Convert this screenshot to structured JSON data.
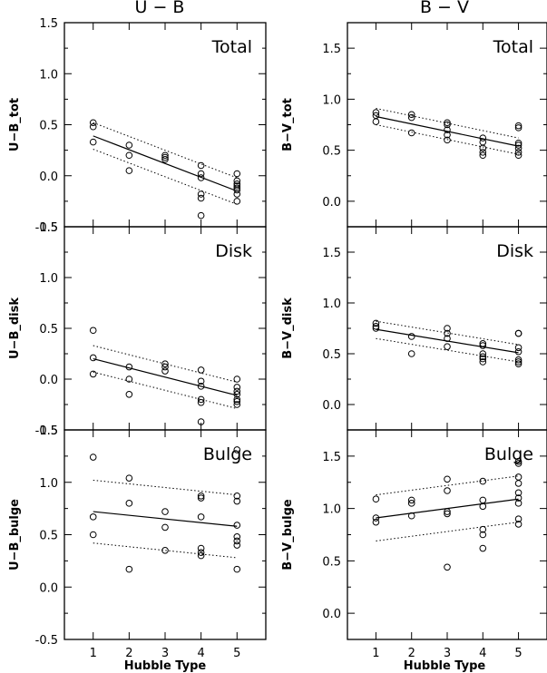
{
  "column_titles": [
    "U − B",
    "B − V"
  ],
  "xlabel": "Hubble Type",
  "chart_data": [
    {
      "type": "scatter",
      "panel": "Total",
      "ylabel": "U−B_tot",
      "xlim": [
        0.2,
        5.8
      ],
      "ylim": [
        -0.5,
        1.5
      ],
      "yticks": [
        "-0.5",
        "0.0",
        "0.5",
        "1.0",
        "1.5"
      ],
      "xticks": [
        "1",
        "2",
        "3",
        "4",
        "5"
      ],
      "points": [
        [
          1,
          0.52
        ],
        [
          1,
          0.48
        ],
        [
          1,
          0.33
        ],
        [
          2,
          0.3
        ],
        [
          2,
          0.2
        ],
        [
          2,
          0.05
        ],
        [
          3,
          0.2
        ],
        [
          3,
          0.18
        ],
        [
          3,
          0.16
        ],
        [
          4,
          0.1
        ],
        [
          4,
          0.02
        ],
        [
          4,
          -0.02
        ],
        [
          4,
          -0.18
        ],
        [
          4,
          -0.22
        ],
        [
          4,
          -0.39
        ],
        [
          5,
          0.02
        ],
        [
          5,
          -0.05
        ],
        [
          5,
          -0.08
        ],
        [
          5,
          -0.1
        ],
        [
          5,
          -0.12
        ],
        [
          5,
          -0.14
        ],
        [
          5,
          -0.18
        ],
        [
          5,
          -0.25
        ]
      ],
      "fit": [
        [
          1,
          0.39
        ],
        [
          5,
          -0.15
        ]
      ],
      "bounds": [
        [
          [
            1,
            0.52
          ],
          [
            5,
            -0.02
          ]
        ],
        [
          [
            1,
            0.26
          ],
          [
            5,
            -0.28
          ]
        ]
      ]
    },
    {
      "type": "scatter",
      "panel": "Total",
      "ylabel": "B−V_tot",
      "xlim": [
        0.2,
        5.8
      ],
      "ylim": [
        -0.25,
        1.75
      ],
      "yticks": [
        "0.0",
        "0.5",
        "1.0",
        "1.5"
      ],
      "xticks": [
        "1",
        "2",
        "3",
        "4",
        "5"
      ],
      "points": [
        [
          1,
          0.87
        ],
        [
          1,
          0.84
        ],
        [
          1,
          0.78
        ],
        [
          2,
          0.85
        ],
        [
          2,
          0.82
        ],
        [
          2,
          0.67
        ],
        [
          3,
          0.77
        ],
        [
          3,
          0.75
        ],
        [
          3,
          0.7
        ],
        [
          3,
          0.65
        ],
        [
          3,
          0.6
        ],
        [
          4,
          0.62
        ],
        [
          4,
          0.58
        ],
        [
          4,
          0.52
        ],
        [
          4,
          0.48
        ],
        [
          4,
          0.45
        ],
        [
          5,
          0.74
        ],
        [
          5,
          0.72
        ],
        [
          5,
          0.57
        ],
        [
          5,
          0.55
        ],
        [
          5,
          0.52
        ],
        [
          5,
          0.48
        ],
        [
          5,
          0.45
        ]
      ],
      "fit": [
        [
          1,
          0.83
        ],
        [
          5,
          0.54
        ]
      ],
      "bounds": [
        [
          [
            1,
            0.91
          ],
          [
            5,
            0.62
          ]
        ],
        [
          [
            1,
            0.75
          ],
          [
            5,
            0.46
          ]
        ]
      ]
    },
    {
      "type": "scatter",
      "panel": "Disk",
      "ylabel": "U−B_disk",
      "xlim": [
        0.2,
        5.8
      ],
      "ylim": [
        -0.5,
        1.5
      ],
      "yticks": [
        "-0.5",
        "0.0",
        "0.5",
        "1.0",
        "1.5"
      ],
      "xticks": [
        "1",
        "2",
        "3",
        "4",
        "5"
      ],
      "points": [
        [
          1,
          0.48
        ],
        [
          1,
          0.21
        ],
        [
          1,
          0.05
        ],
        [
          2,
          0.12
        ],
        [
          2,
          0.0
        ],
        [
          2,
          -0.15
        ],
        [
          3,
          0.15
        ],
        [
          3,
          0.12
        ],
        [
          3,
          0.08
        ],
        [
          4,
          0.09
        ],
        [
          4,
          -0.02
        ],
        [
          4,
          -0.07
        ],
        [
          4,
          -0.2
        ],
        [
          4,
          -0.23
        ],
        [
          4,
          -0.42
        ],
        [
          5,
          0.0
        ],
        [
          5,
          -0.08
        ],
        [
          5,
          -0.12
        ],
        [
          5,
          -0.15
        ],
        [
          5,
          -0.2
        ],
        [
          5,
          -0.22
        ],
        [
          5,
          -0.25
        ]
      ],
      "fit": [
        [
          1,
          0.2
        ],
        [
          5,
          -0.16
        ]
      ],
      "bounds": [
        [
          [
            1,
            0.33
          ],
          [
            5,
            -0.03
          ]
        ],
        [
          [
            1,
            0.07
          ],
          [
            5,
            -0.29
          ]
        ]
      ]
    },
    {
      "type": "scatter",
      "panel": "Disk",
      "ylabel": "B−V_disk",
      "xlim": [
        0.2,
        5.8
      ],
      "ylim": [
        -0.25,
        1.75
      ],
      "yticks": [
        "0.0",
        "0.5",
        "1.0",
        "1.5"
      ],
      "xticks": [
        "1",
        "2",
        "3",
        "4",
        "5"
      ],
      "points": [
        [
          1,
          0.8
        ],
        [
          1,
          0.77
        ],
        [
          1,
          0.75
        ],
        [
          2,
          0.67
        ],
        [
          2,
          0.5
        ],
        [
          3,
          0.75
        ],
        [
          3,
          0.7
        ],
        [
          3,
          0.65
        ],
        [
          3,
          0.57
        ],
        [
          4,
          0.6
        ],
        [
          4,
          0.58
        ],
        [
          4,
          0.5
        ],
        [
          4,
          0.47
        ],
        [
          4,
          0.45
        ],
        [
          4,
          0.42
        ],
        [
          5,
          0.7
        ],
        [
          5,
          0.7
        ],
        [
          5,
          0.56
        ],
        [
          5,
          0.52
        ],
        [
          5,
          0.44
        ],
        [
          5,
          0.42
        ],
        [
          5,
          0.4
        ]
      ],
      "fit": [
        [
          1,
          0.74
        ],
        [
          5,
          0.51
        ]
      ],
      "bounds": [
        [
          [
            1,
            0.82
          ],
          [
            5,
            0.59
          ]
        ],
        [
          [
            1,
            0.65
          ],
          [
            5,
            0.42
          ]
        ]
      ]
    },
    {
      "type": "scatter",
      "panel": "Bulge",
      "ylabel": "U−B_bulge",
      "xlim": [
        0.2,
        5.8
      ],
      "ylim": [
        -0.5,
        1.5
      ],
      "yticks": [
        "-0.5",
        "0.0",
        "0.5",
        "1.0",
        "1.5"
      ],
      "xticks": [
        "1",
        "2",
        "3",
        "4",
        "5"
      ],
      "points": [
        [
          1,
          1.24
        ],
        [
          1,
          0.67
        ],
        [
          1,
          0.5
        ],
        [
          2,
          1.04
        ],
        [
          2,
          0.8
        ],
        [
          2,
          0.17
        ],
        [
          3,
          0.72
        ],
        [
          3,
          0.57
        ],
        [
          3,
          0.35
        ],
        [
          4,
          0.87
        ],
        [
          4,
          0.85
        ],
        [
          4,
          0.67
        ],
        [
          4,
          0.37
        ],
        [
          4,
          0.33
        ],
        [
          4,
          0.3
        ],
        [
          5,
          1.31
        ],
        [
          5,
          0.87
        ],
        [
          5,
          0.82
        ],
        [
          5,
          0.59
        ],
        [
          5,
          0.48
        ],
        [
          5,
          0.44
        ],
        [
          5,
          0.4
        ],
        [
          5,
          0.17
        ]
      ],
      "fit": [
        [
          1,
          0.72
        ],
        [
          5,
          0.58
        ]
      ],
      "bounds": [
        [
          [
            1,
            1.02
          ],
          [
            5,
            0.88
          ]
        ],
        [
          [
            1,
            0.42
          ],
          [
            5,
            0.28
          ]
        ]
      ]
    },
    {
      "type": "scatter",
      "panel": "Bulge",
      "ylabel": "B−V_bulge",
      "xlim": [
        0.2,
        5.8
      ],
      "ylim": [
        -0.25,
        1.75
      ],
      "yticks": [
        "0.0",
        "0.5",
        "1.0",
        "1.5"
      ],
      "xticks": [
        "1",
        "2",
        "3",
        "4",
        "5"
      ],
      "points": [
        [
          1,
          1.09
        ],
        [
          1,
          0.91
        ],
        [
          1,
          0.87
        ],
        [
          2,
          1.08
        ],
        [
          2,
          1.05
        ],
        [
          2,
          0.93
        ],
        [
          3,
          1.28
        ],
        [
          3,
          1.17
        ],
        [
          3,
          0.97
        ],
        [
          3,
          0.95
        ],
        [
          3,
          0.44
        ],
        [
          4,
          1.26
        ],
        [
          4,
          1.08
        ],
        [
          4,
          1.02
        ],
        [
          4,
          0.8
        ],
        [
          4,
          0.75
        ],
        [
          4,
          0.62
        ],
        [
          5,
          1.45
        ],
        [
          5,
          1.43
        ],
        [
          5,
          1.3
        ],
        [
          5,
          1.24
        ],
        [
          5,
          1.15
        ],
        [
          5,
          1.1
        ],
        [
          5,
          1.05
        ],
        [
          5,
          0.9
        ],
        [
          5,
          0.85
        ]
      ],
      "fit": [
        [
          1,
          0.91
        ],
        [
          5,
          1.09
        ]
      ],
      "bounds": [
        [
          [
            1,
            1.13
          ],
          [
            5,
            1.31
          ]
        ],
        [
          [
            1,
            0.69
          ],
          [
            5,
            0.87
          ]
        ]
      ]
    }
  ]
}
